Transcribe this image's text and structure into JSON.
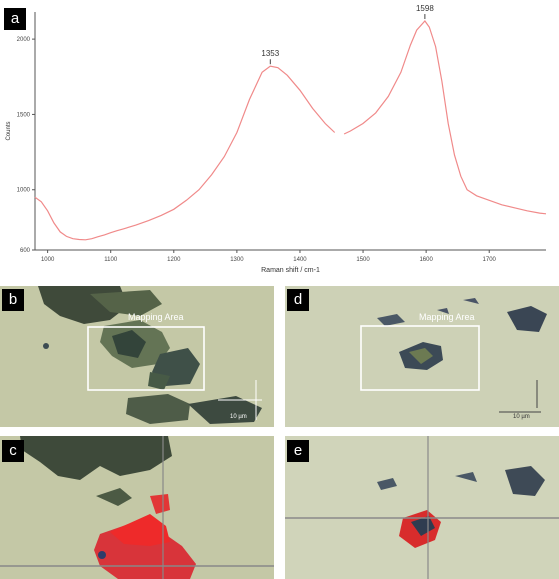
{
  "panels": {
    "a": {
      "letter": "a"
    },
    "b": {
      "letter": "b",
      "mapping_label": "Mapping Area",
      "scale_h": "10 µm",
      "scale_v": "10 µm"
    },
    "c": {
      "letter": "c"
    },
    "d": {
      "letter": "d",
      "mapping_label": "Mapping Area",
      "scale_h": "10 µm",
      "scale_v": "10 µm"
    },
    "e": {
      "letter": "e"
    }
  },
  "chart_data": {
    "type": "line",
    "xlabel": "Raman shift / cm-1",
    "ylabel": "Counts",
    "xlim": [
      980,
      1790
    ],
    "ylim": [
      600,
      2180
    ],
    "x_ticks": [
      1000,
      1100,
      1200,
      1300,
      1400,
      1500,
      1600,
      1700
    ],
    "y_ticks": [
      600,
      1000,
      1500,
      2000
    ],
    "series": [
      {
        "color": "#f08a8a",
        "segments": [
          [
            [
              980,
              950
            ],
            [
              990,
              920
            ],
            [
              1000,
              860
            ],
            [
              1010,
              780
            ],
            [
              1020,
              720
            ],
            [
              1030,
              690
            ],
            [
              1040,
              675
            ],
            [
              1050,
              670
            ],
            [
              1060,
              668
            ],
            [
              1070,
              675
            ],
            [
              1080,
              688
            ],
            [
              1090,
              700
            ],
            [
              1100,
              715
            ],
            [
              1110,
              728
            ],
            [
              1120,
              740
            ],
            [
              1140,
              765
            ],
            [
              1160,
              795
            ],
            [
              1180,
              830
            ],
            [
              1200,
              870
            ],
            [
              1220,
              930
            ],
            [
              1240,
              1000
            ],
            [
              1260,
              1100
            ],
            [
              1280,
              1220
            ],
            [
              1300,
              1380
            ],
            [
              1320,
              1600
            ],
            [
              1340,
              1780
            ],
            [
              1353,
              1820
            ],
            [
              1365,
              1810
            ],
            [
              1380,
              1760
            ],
            [
              1400,
              1660
            ],
            [
              1420,
              1540
            ],
            [
              1440,
              1440
            ],
            [
              1455,
              1380
            ]
          ],
          [
            [
              1470,
              1370
            ],
            [
              1480,
              1390
            ],
            [
              1500,
              1440
            ],
            [
              1520,
              1510
            ],
            [
              1540,
              1620
            ],
            [
              1560,
              1780
            ],
            [
              1575,
              1960
            ],
            [
              1585,
              2060
            ],
            [
              1598,
              2120
            ],
            [
              1605,
              2080
            ],
            [
              1615,
              1950
            ],
            [
              1625,
              1720
            ],
            [
              1635,
              1440
            ],
            [
              1645,
              1230
            ],
            [
              1655,
              1090
            ],
            [
              1665,
              1000
            ],
            [
              1680,
              960
            ],
            [
              1700,
              930
            ],
            [
              1720,
              900
            ],
            [
              1740,
              880
            ],
            [
              1760,
              860
            ],
            [
              1780,
              845
            ],
            [
              1790,
              840
            ]
          ]
        ]
      }
    ],
    "annotations": [
      {
        "x": 1353,
        "y": 1820,
        "text": "1353"
      },
      {
        "x": 1598,
        "y": 2120,
        "text": "1598"
      }
    ]
  },
  "colors": {
    "optical_background": "#c9ccb0",
    "flake_dark": "#3b4a3c",
    "raman_red": "#ff2a2a",
    "frame_white": "#ffffff"
  }
}
